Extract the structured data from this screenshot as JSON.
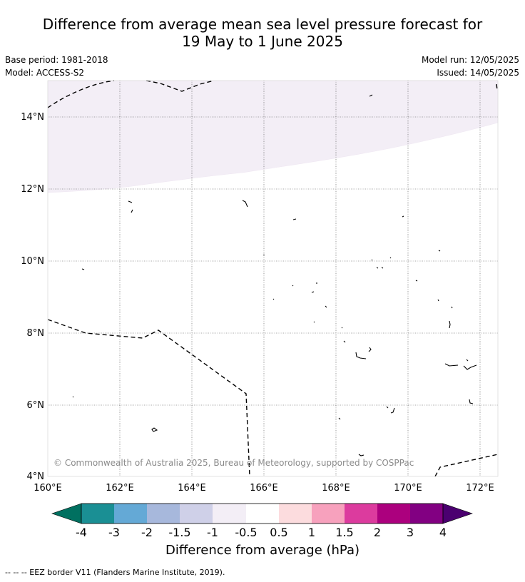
{
  "header": {
    "title_line1": "Difference from average mean sea level pressure forecast for",
    "title_line2": "19 May to 1 June 2025",
    "base_period": "Base period: 1981-2018",
    "model": "Model: ACCESS-S2",
    "model_run": "Model run: 12/05/2025",
    "issued": "Issued: 14/05/2025"
  },
  "map": {
    "lon_ticks": [
      "160°E",
      "162°E",
      "164°E",
      "166°E",
      "168°E",
      "170°E",
      "172°E"
    ],
    "lat_ticks": [
      "14°N",
      "12°N",
      "10°N",
      "8°N",
      "6°N",
      "4°N"
    ],
    "copyright": "© Commonwealth of Australia 2025, Bureau of Meteorology, supported by COSPPac",
    "field": [
      {
        "range": "-0.5 to 0",
        "color": "#f3eef6",
        "region": "north of ~12°N at 160°E to ~13.8°N at 172.5°E"
      }
    ]
  },
  "colorbar": {
    "title": "Difference from average (hPa)",
    "tick_labels": [
      "-4",
      "-3",
      "-2",
      "-1.5",
      "-1",
      "-0.5",
      "0.5",
      "1",
      "1.5",
      "2",
      "3",
      "4"
    ],
    "colors": [
      "#1a8f94",
      "#64a9d6",
      "#a7b8dc",
      "#cfd0e8",
      "#f3eef6",
      "#ffffff",
      "#fcdcde",
      "#f7a1bd",
      "#dc3b9e",
      "#ac007e",
      "#820082"
    ],
    "under_color": "#007060",
    "over_color": "#4b0070"
  },
  "footer": {
    "legend_note": "--  --  -- EEZ border V11 (Flanders Marine Institute, 2019)."
  }
}
